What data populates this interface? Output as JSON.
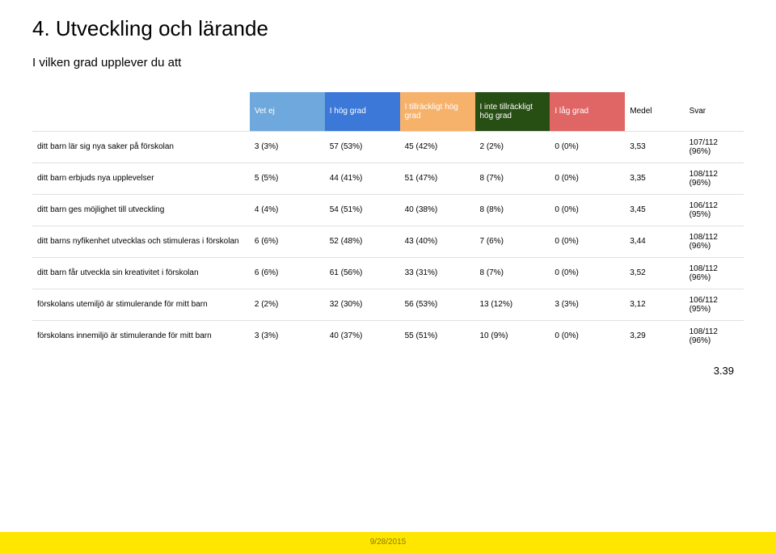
{
  "title": "4. Utveckling och lärande",
  "subtitle": "I vilken grad upplever du att",
  "columns": {
    "vetej": {
      "label": "Vet ej",
      "bg": "#6fa8dc"
    },
    "hog": {
      "label": "I hög grad",
      "bg": "#3c78d8"
    },
    "till": {
      "label": "I tillräckligt hög grad",
      "bg": "#f6b26b"
    },
    "inte": {
      "label": "I inte tillräckligt hög grad",
      "bg": "#274e13"
    },
    "lag": {
      "label": "I låg grad",
      "bg": "#e06666"
    },
    "medel": {
      "label": "Medel"
    },
    "svar": {
      "label": "Svar"
    }
  },
  "rows": [
    {
      "label": "ditt barn lär sig nya saker på förskolan",
      "vetej": "3 (3%)",
      "hog": "57 (53%)",
      "till": "45 (42%)",
      "inte": "2 (2%)",
      "lag": "0 (0%)",
      "medel": "3,53",
      "svar": "107/112 (96%)"
    },
    {
      "label": "ditt barn erbjuds nya upplevelser",
      "vetej": "5 (5%)",
      "hog": "44 (41%)",
      "till": "51 (47%)",
      "inte": "8 (7%)",
      "lag": "0 (0%)",
      "medel": "3,35",
      "svar": "108/112 (96%)"
    },
    {
      "label": "ditt barn ges möjlighet till utveckling",
      "vetej": "4 (4%)",
      "hog": "54 (51%)",
      "till": "40 (38%)",
      "inte": "8 (8%)",
      "lag": "0 (0%)",
      "medel": "3,45",
      "svar": "106/112 (95%)"
    },
    {
      "label": "ditt barns nyfikenhet utvecklas och stimuleras i förskolan",
      "vetej": "6 (6%)",
      "hog": "52 (48%)",
      "till": "43 (40%)",
      "inte": "7 (6%)",
      "lag": "0 (0%)",
      "medel": "3,44",
      "svar": "108/112 (96%)"
    },
    {
      "label": "ditt barn får utveckla sin kreativitet i förskolan",
      "vetej": "6 (6%)",
      "hog": "61 (56%)",
      "till": "33 (31%)",
      "inte": "8 (7%)",
      "lag": "0 (0%)",
      "medel": "3,52",
      "svar": "108/112 (96%)"
    },
    {
      "label": "förskolans utemiljö är stimulerande för mitt barn",
      "vetej": "2 (2%)",
      "hog": "32 (30%)",
      "till": "56 (53%)",
      "inte": "13 (12%)",
      "lag": "3 (3%)",
      "medel": "3,12",
      "svar": "106/112 (95%)"
    },
    {
      "label": "förskolans innemiljö är stimulerande för mitt barn",
      "vetej": "3 (3%)",
      "hog": "40 (37%)",
      "till": "55 (51%)",
      "inte": "10 (9%)",
      "lag": "0 (0%)",
      "medel": "3,29",
      "svar": "108/112 (96%)"
    }
  ],
  "summary": "3.39",
  "footer": "9/28/2015",
  "style": {
    "page_bg": "#ffffff",
    "footer_bg": "#ffe600",
    "footer_text": "#8a7a00",
    "border_color": "#e0e0e0",
    "title_fontsize": 26,
    "body_fontsize": 10
  }
}
